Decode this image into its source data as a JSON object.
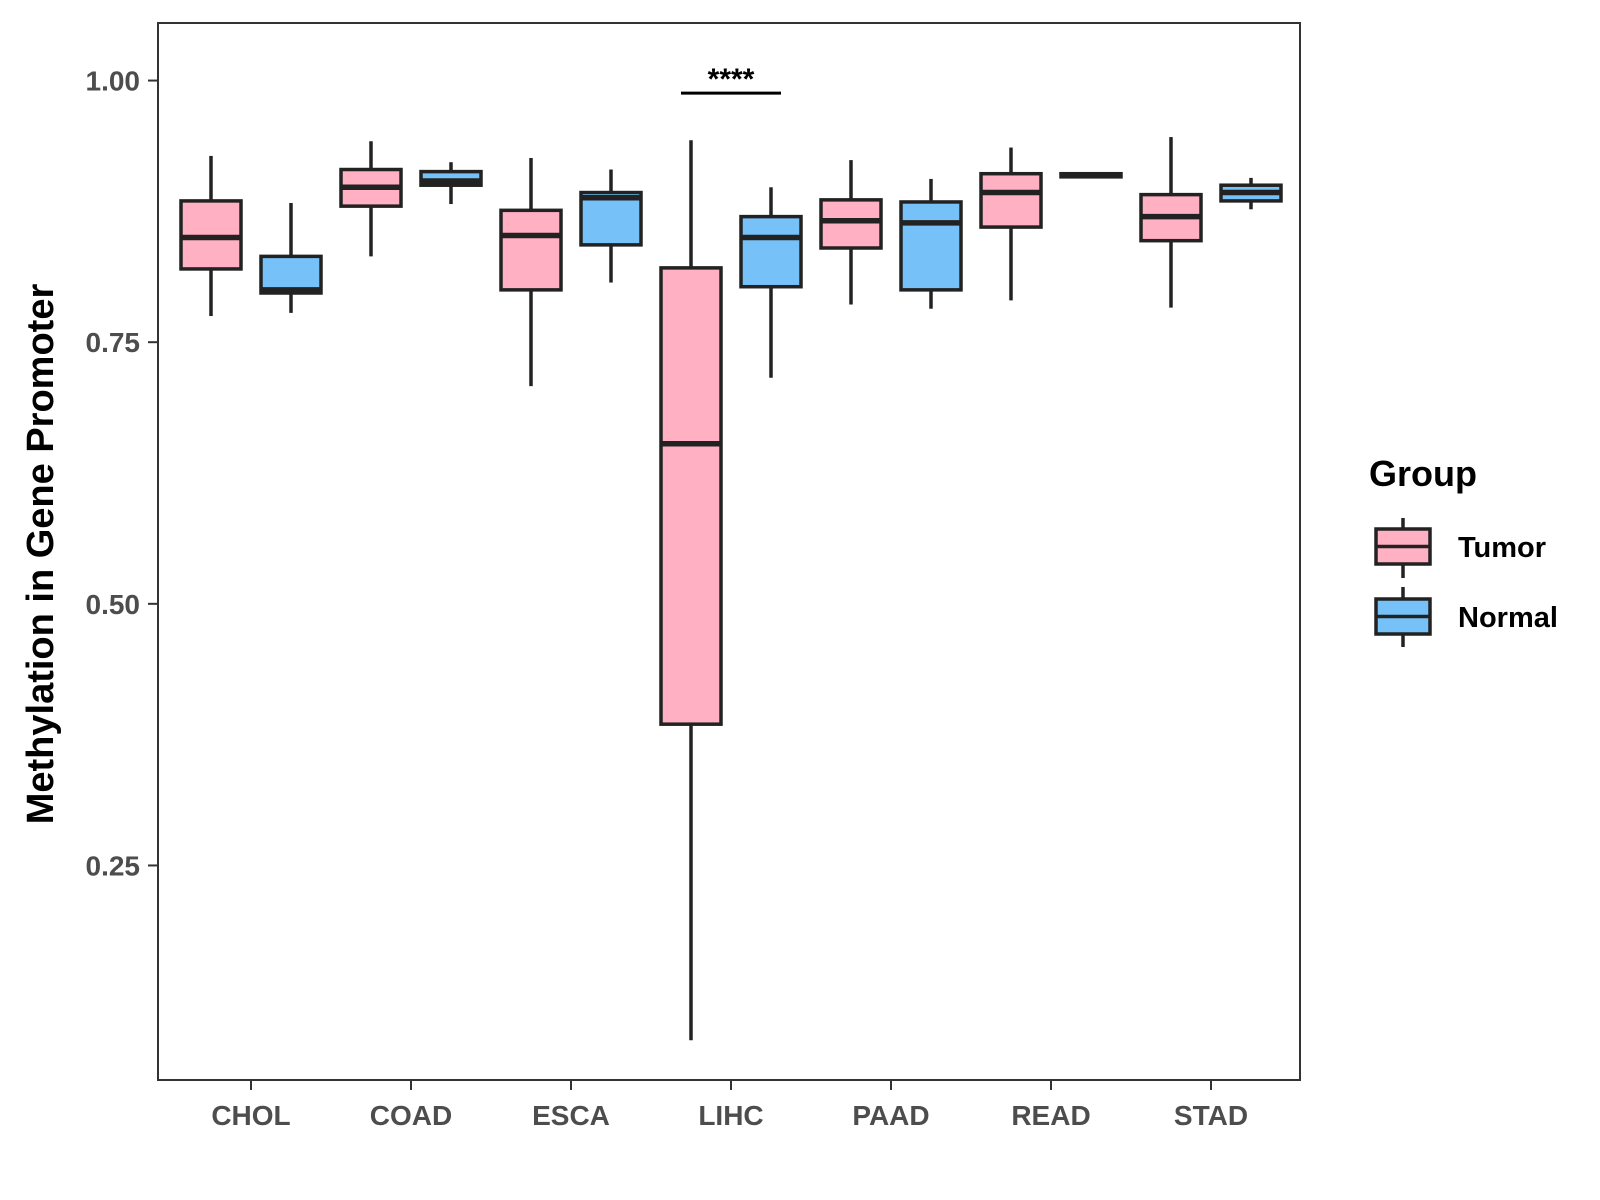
{
  "chart_data": {
    "type": "boxplot",
    "title": "",
    "xlabel": "",
    "ylabel": "Methylation in Gene Promoter",
    "ylim": [
      0.045,
      1.055
    ],
    "yticks": [
      0.25,
      0.5,
      0.75,
      1.0
    ],
    "ytick_labels": [
      "0.25",
      "0.50",
      "0.75",
      "1.00"
    ],
    "categories": [
      "CHOL",
      "COAD",
      "ESCA",
      "LIHC",
      "PAAD",
      "READ",
      "STAD"
    ],
    "legend": {
      "title": "Group",
      "position": "right",
      "entries": [
        {
          "name": "Tumor",
          "color": "#FFB0C3"
        },
        {
          "name": "Normal",
          "color": "#75C1F8"
        }
      ]
    },
    "series": [
      {
        "name": "Tumor",
        "color": "#FFB0C3",
        "boxes": [
          {
            "min": 0.775,
            "q1": 0.82,
            "median": 0.85,
            "q3": 0.885,
            "max": 0.928
          },
          {
            "min": 0.832,
            "q1": 0.88,
            "median": 0.898,
            "q3": 0.915,
            "max": 0.942
          },
          {
            "min": 0.708,
            "q1": 0.8,
            "median": 0.852,
            "q3": 0.876,
            "max": 0.926
          },
          {
            "min": 0.083,
            "q1": 0.385,
            "median": 0.653,
            "q3": 0.821,
            "max": 0.943
          },
          {
            "min": 0.786,
            "q1": 0.84,
            "median": 0.866,
            "q3": 0.886,
            "max": 0.924
          },
          {
            "min": 0.79,
            "q1": 0.86,
            "median": 0.893,
            "q3": 0.911,
            "max": 0.936
          },
          {
            "min": 0.783,
            "q1": 0.847,
            "median": 0.87,
            "q3": 0.891,
            "max": 0.946
          }
        ]
      },
      {
        "name": "Normal",
        "color": "#75C1F8",
        "boxes": [
          {
            "min": 0.778,
            "q1": 0.797,
            "median": 0.8,
            "q3": 0.832,
            "max": 0.883
          },
          {
            "min": 0.882,
            "q1": 0.9,
            "median": 0.904,
            "q3": 0.913,
            "max": 0.922
          },
          {
            "min": 0.807,
            "q1": 0.843,
            "median": 0.888,
            "q3": 0.893,
            "max": 0.915
          },
          {
            "min": 0.716,
            "q1": 0.803,
            "median": 0.85,
            "q3": 0.87,
            "max": 0.898
          },
          {
            "min": 0.782,
            "q1": 0.8,
            "median": 0.864,
            "q3": 0.884,
            "max": 0.906
          },
          {
            "min": 0.908,
            "q1": 0.908,
            "median": 0.909,
            "q3": 0.911,
            "max": 0.912
          },
          {
            "min": 0.877,
            "q1": 0.885,
            "median": 0.893,
            "q3": 0.9,
            "max": 0.907
          }
        ]
      }
    ],
    "annotations": [
      {
        "category": "LIHC",
        "text": "****",
        "y": 0.988
      }
    ]
  }
}
